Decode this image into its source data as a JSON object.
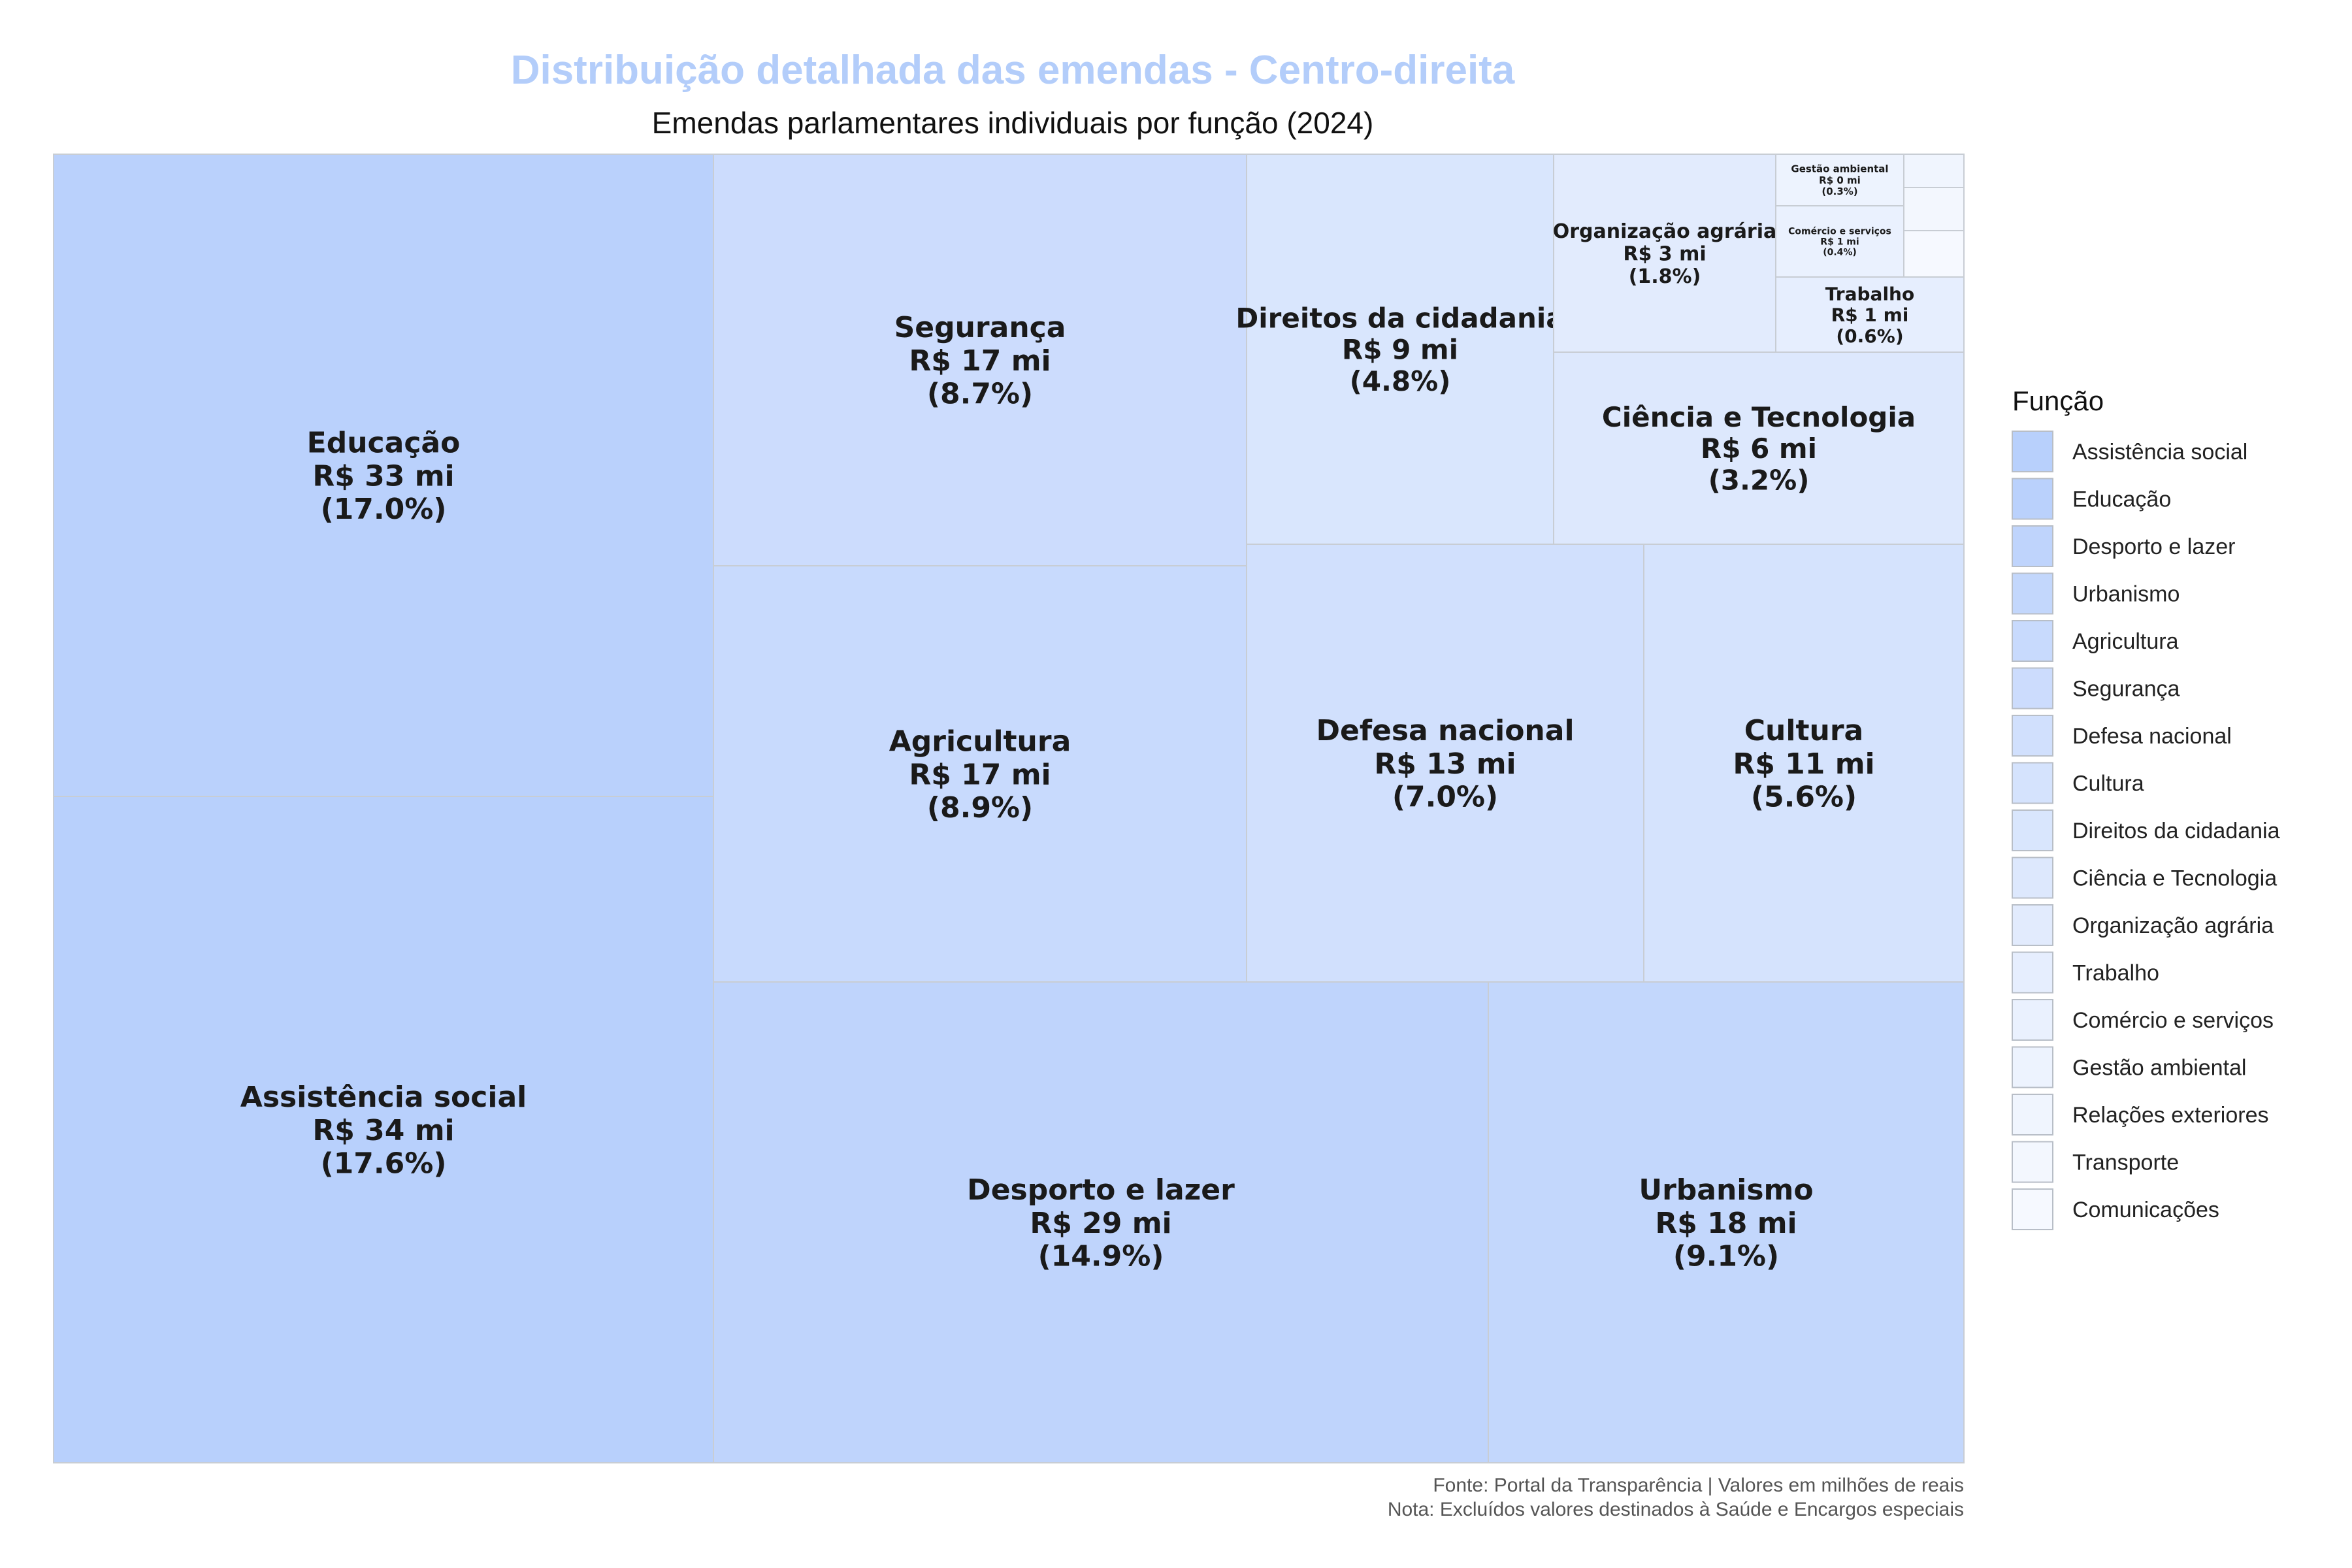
{
  "chart_data": {
    "type": "treemap",
    "title": "Distribuição detalhada das emendas - Centro-direita",
    "subtitle": "Emendas parlamentares individuais por função (2024)",
    "legend_title": "Função",
    "legend_position": "right",
    "caption_lines": [
      "Fonte: Portal da Transparência | Valores em milhões de reais",
      "Nota: Excluídos valores destinados à Saúde e Encargos especiais"
    ],
    "value_unit": "milhões de reais",
    "title_color": "#b3cdfa",
    "items": [
      {
        "name": "Assistência social",
        "value_label": "R$ 34 mi",
        "pct_label": "(17.6%)",
        "share": 17.6,
        "color": "#b8d0fc"
      },
      {
        "name": "Educação",
        "value_label": "R$ 33 mi",
        "pct_label": "(17.0%)",
        "share": 17.0,
        "color": "#bad1fc"
      },
      {
        "name": "Desporto e lazer",
        "value_label": "R$ 29 mi",
        "pct_label": "(14.9%)",
        "share": 14.9,
        "color": "#bfd4fc"
      },
      {
        "name": "Urbanismo",
        "value_label": "R$ 18 mi",
        "pct_label": "(9.1%)",
        "share": 9.1,
        "color": "#c3d7fc"
      },
      {
        "name": "Agricultura",
        "value_label": "R$ 17 mi",
        "pct_label": "(8.9%)",
        "share": 8.9,
        "color": "#c8dafd"
      },
      {
        "name": "Segurança",
        "value_label": "R$ 17 mi",
        "pct_label": "(8.7%)",
        "share": 8.7,
        "color": "#ccdcfd"
      },
      {
        "name": "Defesa nacional",
        "value_label": "R$ 13 mi",
        "pct_label": "(7.0%)",
        "share": 7.0,
        "color": "#d1e0fd"
      },
      {
        "name": "Cultura",
        "value_label": "R$ 11 mi",
        "pct_label": "(5.6%)",
        "share": 5.6,
        "color": "#d5e3fd"
      },
      {
        "name": "Direitos da cidadania",
        "value_label": "R$ 9 mi",
        "pct_label": "(4.8%)",
        "share": 4.8,
        "color": "#d9e6fd"
      },
      {
        "name": "Ciência e Tecnologia",
        "value_label": "R$ 6 mi",
        "pct_label": "(3.2%)",
        "share": 3.2,
        "color": "#dde8fd"
      },
      {
        "name": "Organização agrária",
        "value_label": "R$ 3 mi",
        "pct_label": "(1.8%)",
        "share": 1.8,
        "color": "#e2ebfd"
      },
      {
        "name": "Trabalho",
        "value_label": "R$ 1 mi",
        "pct_label": "(0.6%)",
        "share": 0.6,
        "color": "#e6eefe"
      },
      {
        "name": "Comércio e serviços",
        "value_label": "R$ 1 mi",
        "pct_label": "(0.4%)",
        "share": 0.4,
        "color": "#eaf1fe"
      },
      {
        "name": "Gestão ambiental",
        "value_label": "R$ 0 mi",
        "pct_label": "(0.3%)",
        "share": 0.3,
        "color": "#edf3fe"
      },
      {
        "name": "Relações exteriores",
        "value_label": "",
        "pct_label": "",
        "share": 0.1,
        "color": "#f0f5fe"
      },
      {
        "name": "Transporte",
        "value_label": "",
        "pct_label": "",
        "share": 0.1,
        "color": "#f3f7fe"
      },
      {
        "name": "Comunicações",
        "value_label": "",
        "pct_label": "",
        "share": 0.05,
        "color": "#f6f9ff"
      }
    ]
  }
}
